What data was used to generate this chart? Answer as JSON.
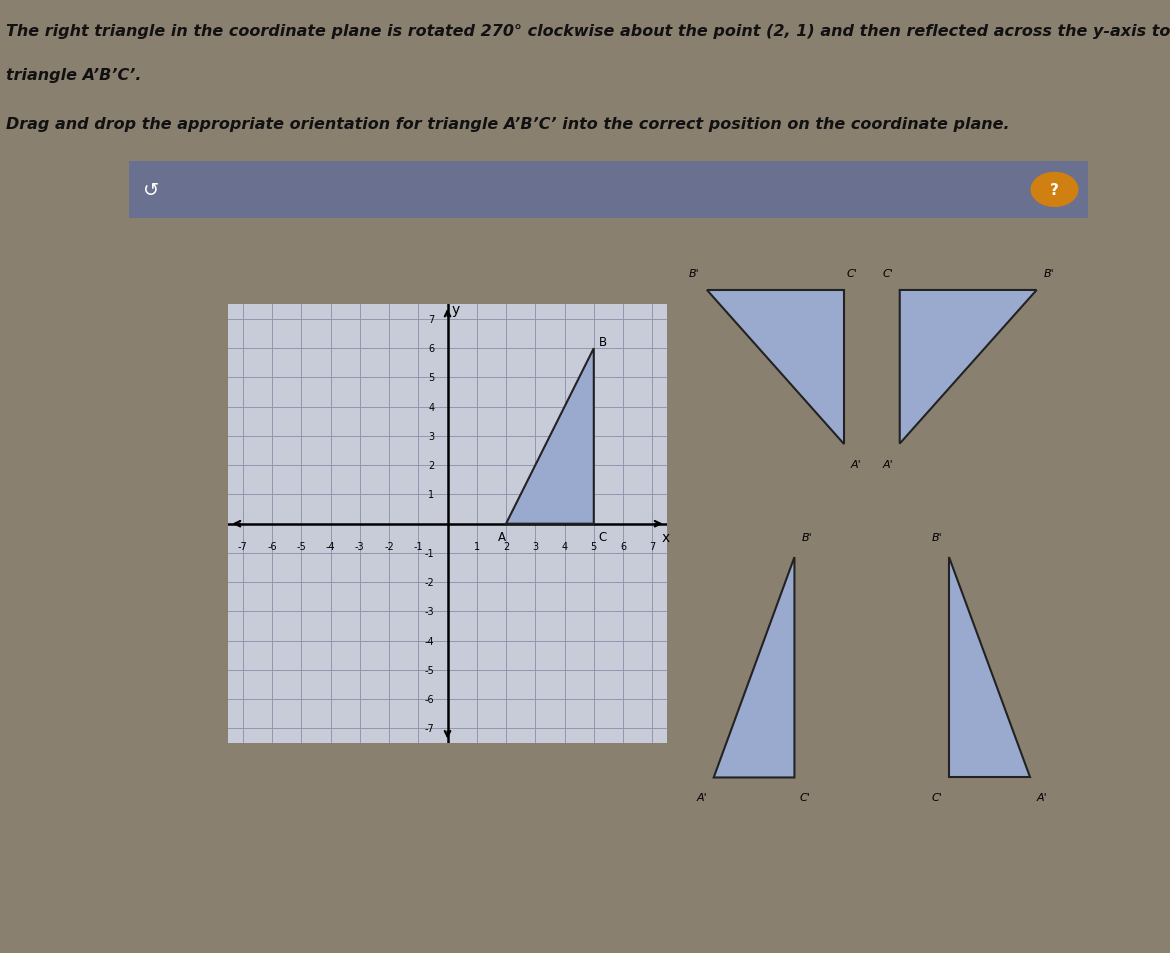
{
  "title_line1": "The right triangle in the coordinate plane is rotated 270° clockwise about the point (2, 1) and then reflected across the y-axis to form",
  "title_line2": "triangle A’B’C’.",
  "subtitle": "Drag and drop the appropriate orientation for triangle A’B’C’ into the correct position on the coordinate plane.",
  "outer_bg": "#8a8070",
  "top_bar_bg": "#6a7090",
  "panel_bg": "#d0cfc8",
  "grid_bg": "#c8ccd8",
  "grid_color": "#9098b0",
  "fill_color": "#9aaace",
  "edge_color": "#222222",
  "axis_range": [
    -7,
    7
  ],
  "tri_A": [
    2,
    0
  ],
  "tri_B": [
    5,
    6
  ],
  "tri_C": [
    5,
    0
  ],
  "font_color": "#111111",
  "header_font_size": 11.5,
  "label_font_size": 8
}
